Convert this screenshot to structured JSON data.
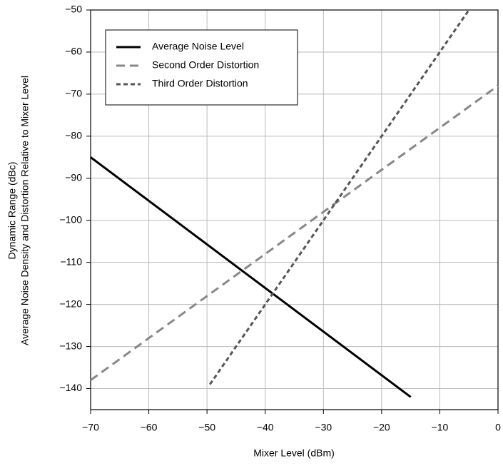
{
  "chart_data": {
    "type": "line",
    "x_label": "Mixer Level (dBm)",
    "y_label": [
      "Dynamic Range (dBc)",
      "Average Noise Density and Distortion Relative to Mixer Level"
    ],
    "xlim": [
      -70,
      0
    ],
    "ylim": [
      -145,
      -50
    ],
    "xticks": [
      {
        "value": -70,
        "label": "−70"
      },
      {
        "value": -60,
        "label": "−60"
      },
      {
        "value": -50,
        "label": "−50"
      },
      {
        "value": -40,
        "label": "−40"
      },
      {
        "value": -30,
        "label": "−30"
      },
      {
        "value": -20,
        "label": "−20"
      },
      {
        "value": -10,
        "label": "−10"
      },
      0
    ],
    "yticks": [
      {
        "value": -50,
        "label": "−50"
      },
      {
        "value": -60,
        "label": "−60"
      },
      {
        "value": -70,
        "label": "−70"
      },
      {
        "value": -80,
        "label": "−80"
      },
      {
        "value": -90,
        "label": "−90"
      },
      {
        "value": -100,
        "label": "−100"
      },
      {
        "value": -110,
        "label": "−110"
      },
      {
        "value": -120,
        "label": "−120"
      },
      {
        "value": -130,
        "label": "−130"
      },
      {
        "value": -140,
        "label": "−140"
      }
    ],
    "grid": true,
    "legend": "top-left",
    "series": [
      {
        "name": "Average Noise Level",
        "color": "#000000",
        "linestyle": "solid",
        "x": [
          -70,
          -15
        ],
        "values": [
          -85,
          -142
        ]
      },
      {
        "name": "Second Order Distortion",
        "color": "#888888",
        "linestyle": "dashed",
        "x": [
          -70,
          0
        ],
        "values": [
          -138,
          -68
        ]
      },
      {
        "name": "Third Order Distortion",
        "color": "#555555",
        "linestyle": "dotted",
        "x": [
          -49.5,
          -5
        ],
        "values": [
          -139,
          -50
        ]
      }
    ]
  }
}
